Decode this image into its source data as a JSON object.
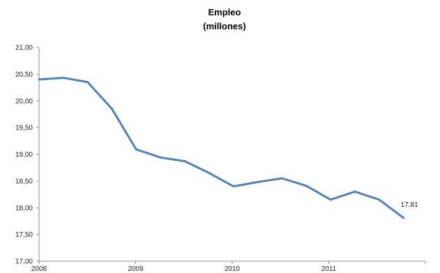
{
  "chart_data": {
    "type": "line",
    "title": [
      "Empleo",
      "(millones)"
    ],
    "xlabel": "",
    "ylabel": "",
    "ylim": [
      17.0,
      21.0
    ],
    "yticks": [
      "21,00",
      "20,50",
      "20,00",
      "19,50",
      "19,00",
      "18,50",
      "18,00",
      "17,50",
      "17,00"
    ],
    "xticks": [
      "2008",
      "2009",
      "2010",
      "2011"
    ],
    "grid": false,
    "legend": "none",
    "colors": {
      "line": "#4f81bd",
      "axis": "#8c8c8c",
      "text": "#222222"
    },
    "series": [
      {
        "x": [
          "2008-T1",
          "2008-T2",
          "2008-T3",
          "2008-T4",
          "2009-T1",
          "2009-T2",
          "2009-T3",
          "2009-T4",
          "2010-T1",
          "2010-T2",
          "2010-T3",
          "2010-T4",
          "2011-T1",
          "2011-T2",
          "2011-T3",
          "2011-T4"
        ],
        "values": [
          20.4,
          20.43,
          20.35,
          19.85,
          19.09,
          18.94,
          18.87,
          18.65,
          18.4,
          18.48,
          18.55,
          18.41,
          18.15,
          18.3,
          18.15,
          17.81
        ]
      }
    ],
    "data_labels": [
      {
        "point_index": 15,
        "text": "17,81"
      }
    ]
  }
}
